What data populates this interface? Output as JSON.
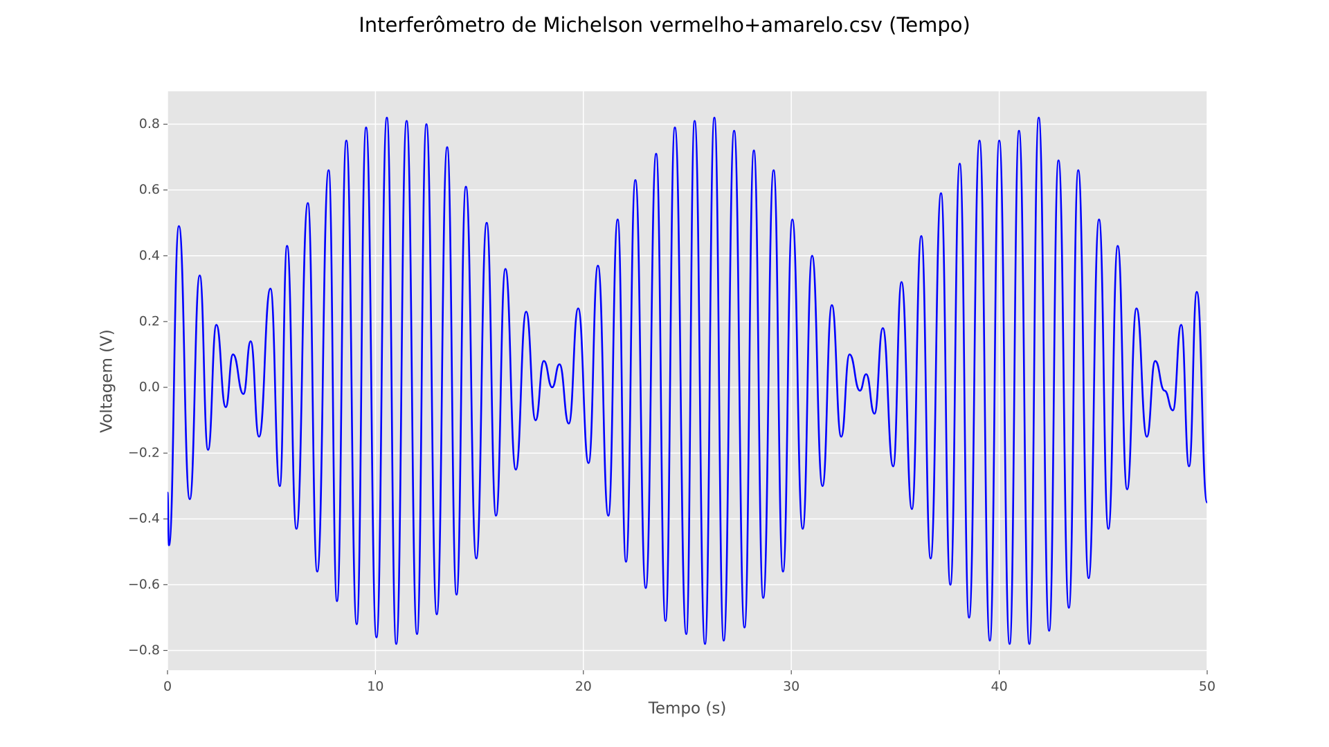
{
  "chart_data": {
    "type": "line",
    "title": "Interferômetro de Michelson vermelho+amarelo.csv (Tempo)",
    "x_label": "Tempo (s)",
    "y_label": "Voltagem (V)",
    "xlim": [
      0,
      50
    ],
    "ylim": [
      -0.86,
      0.9
    ],
    "xticks": [
      0,
      10,
      20,
      30,
      40,
      50
    ],
    "yticks": [
      {
        "value": -0.8,
        "label": "−0.8"
      },
      {
        "value": -0.6,
        "label": "−0.6"
      },
      {
        "value": -0.4,
        "label": "−0.4"
      },
      {
        "value": -0.2,
        "label": "−0.2"
      },
      {
        "value": 0,
        "label": "0.0"
      },
      0.2,
      0.4,
      0.6,
      0.8
    ],
    "grid": true,
    "x": [
      0,
      0.07,
      0.55,
      1.07,
      1.55,
      1.95,
      2.35,
      2.8,
      3.15,
      3.65,
      4.0,
      4.4,
      4.95,
      5.4,
      5.75,
      6.2,
      6.75,
      7.2,
      7.75,
      8.15,
      8.6,
      9.1,
      9.55,
      10.05,
      10.55,
      11.0,
      11.5,
      12.0,
      12.45,
      12.95,
      13.45,
      13.9,
      14.35,
      14.85,
      15.35,
      15.8,
      16.25,
      16.75,
      17.25,
      17.7,
      18.1,
      18.5,
      18.85,
      19.3,
      19.75,
      20.25,
      20.7,
      21.2,
      21.65,
      22.05,
      22.5,
      23.0,
      23.5,
      23.95,
      24.4,
      24.95,
      25.35,
      25.85,
      26.3,
      26.75,
      27.25,
      27.75,
      28.2,
      28.65,
      29.15,
      29.6,
      30.05,
      30.55,
      31.0,
      31.5,
      31.95,
      32.4,
      32.8,
      33.3,
      33.6,
      34.0,
      34.4,
      34.9,
      35.3,
      35.8,
      36.25,
      36.7,
      37.2,
      37.65,
      38.1,
      38.55,
      39.05,
      39.55,
      40.0,
      40.5,
      40.95,
      41.45,
      41.9,
      42.4,
      42.85,
      43.35,
      43.8,
      44.3,
      44.8,
      45.25,
      45.7,
      46.15,
      46.6,
      47.1,
      47.5,
      47.95,
      48.35,
      48.75,
      49.13,
      49.5,
      50.0
    ],
    "series": [
      {
        "color": "#0000ff",
        "values": [
          -0.32,
          -0.48,
          0.49,
          -0.34,
          0.34,
          -0.19,
          0.19,
          -0.06,
          0.1,
          -0.02,
          0.14,
          -0.15,
          0.3,
          -0.3,
          0.43,
          -0.43,
          0.56,
          -0.56,
          0.66,
          -0.65,
          0.75,
          -0.72,
          0.79,
          -0.76,
          0.82,
          -0.78,
          0.81,
          -0.75,
          0.8,
          -0.69,
          0.73,
          -0.63,
          0.61,
          -0.52,
          0.5,
          -0.39,
          0.36,
          -0.25,
          0.23,
          -0.1,
          0.08,
          0.0,
          0.07,
          -0.11,
          0.24,
          -0.23,
          0.37,
          -0.39,
          0.51,
          -0.53,
          0.63,
          -0.61,
          0.71,
          -0.71,
          0.79,
          -0.75,
          0.81,
          -0.78,
          0.82,
          -0.77,
          0.78,
          -0.73,
          0.72,
          -0.64,
          0.66,
          -0.56,
          0.51,
          -0.43,
          0.4,
          -0.3,
          0.25,
          -0.15,
          0.1,
          -0.01,
          0.04,
          -0.08,
          0.18,
          -0.24,
          0.32,
          -0.37,
          0.46,
          -0.52,
          0.59,
          -0.6,
          0.68,
          -0.7,
          0.75,
          -0.77,
          0.75,
          -0.78,
          0.78,
          -0.78,
          0.82,
          -0.74,
          0.69,
          -0.67,
          0.66,
          -0.58,
          0.51,
          -0.43,
          0.43,
          -0.31,
          0.24,
          -0.15,
          0.08,
          -0.01,
          -0.07,
          0.19,
          -0.24,
          0.29,
          -0.35
        ]
      }
    ]
  }
}
